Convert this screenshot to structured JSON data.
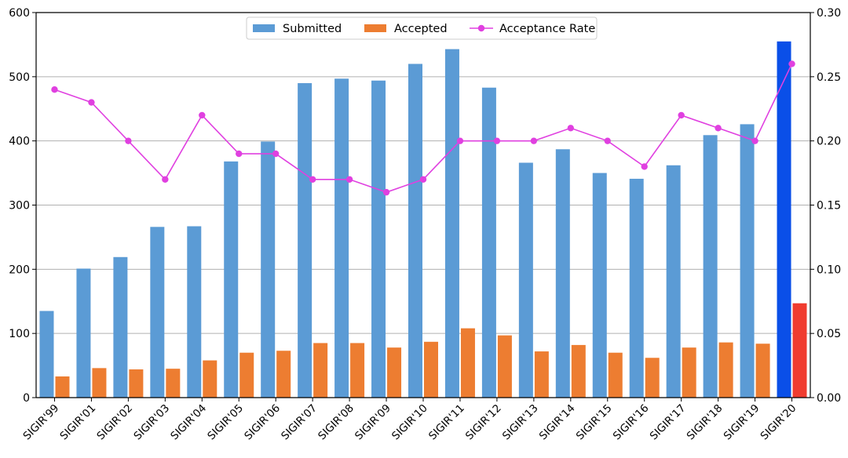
{
  "chart_data": {
    "type": "bar",
    "title": "",
    "xlabel": "",
    "ylabel": "",
    "categories": [
      "SIGIR'99",
      "SIGIR'01",
      "SIGIR'02",
      "SIGIR'03",
      "SIGIR'04",
      "SIGIR'05",
      "SIGIR'06",
      "SIGIR'07",
      "SIGIR'08",
      "SIGIR'09",
      "SIGIR'10",
      "SIGIR'11",
      "SIGIR'12",
      "SIGIR'13",
      "SIGIR'14",
      "SIGIR'15",
      "SIGIR'16",
      "SIGIR'17",
      "SIGIR'18",
      "SIGIR'19",
      "SIGIR'20"
    ],
    "series": [
      {
        "name": "Submitted",
        "kind": "bar",
        "axis": "left",
        "color": "#5b9bd5",
        "highlight_color": "#0a4fe8",
        "highlight_index": 20,
        "values": [
          135,
          201,
          219,
          266,
          267,
          368,
          399,
          490,
          497,
          494,
          520,
          543,
          483,
          366,
          387,
          350,
          341,
          362,
          409,
          426,
          555
        ]
      },
      {
        "name": "Accepted",
        "kind": "bar",
        "axis": "left",
        "color": "#ed7d31",
        "highlight_color": "#f03c2f",
        "highlight_index": 20,
        "values": [
          33,
          46,
          44,
          45,
          58,
          70,
          73,
          85,
          85,
          78,
          87,
          108,
          97,
          72,
          82,
          70,
          62,
          78,
          86,
          84,
          147
        ]
      },
      {
        "name": "Acceptance Rate",
        "kind": "line",
        "axis": "right",
        "color": "#e040e0",
        "values": [
          0.24,
          0.23,
          0.2,
          0.17,
          0.22,
          0.19,
          0.19,
          0.17,
          0.17,
          0.16,
          0.17,
          0.2,
          0.2,
          0.2,
          0.21,
          0.2,
          0.18,
          0.22,
          0.21,
          0.2,
          0.26
        ]
      }
    ],
    "y_left": {
      "range": [
        0,
        600
      ],
      "ticks": [
        0,
        100,
        200,
        300,
        400,
        500,
        600
      ],
      "tick_labels": [
        "0",
        "100",
        "200",
        "300",
        "400",
        "500",
        "600"
      ]
    },
    "y_right": {
      "range": [
        0,
        0.3
      ],
      "ticks": [
        0,
        0.05,
        0.1,
        0.15,
        0.2,
        0.25,
        0.3
      ],
      "tick_labels": [
        "0.00",
        "0.05",
        "0.10",
        "0.15",
        "0.20",
        "0.25",
        "0.30"
      ]
    },
    "grid": "horizontal",
    "legend": {
      "position": "top-center",
      "entries": [
        "Submitted",
        "Accepted",
        "Acceptance Rate"
      ]
    }
  }
}
